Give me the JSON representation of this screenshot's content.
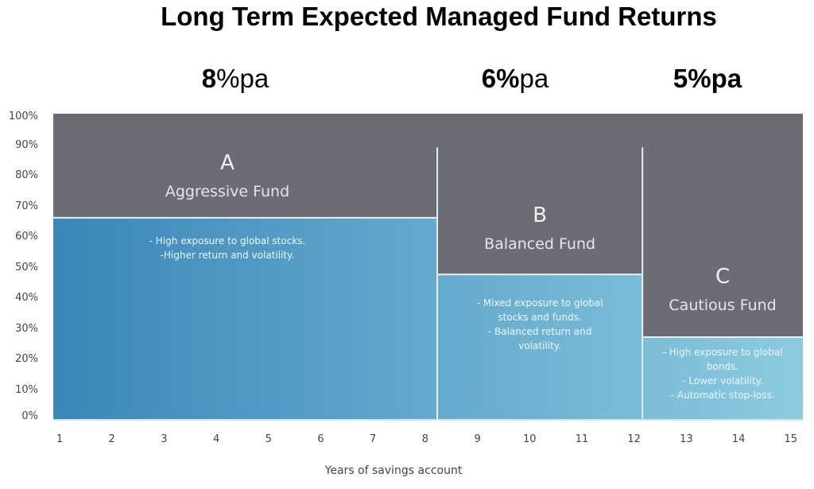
{
  "chart_data": {
    "type": "area",
    "title": "Long Term Expected Managed Fund Returns",
    "xlabel": "Years of savings account",
    "ylabel": "",
    "x_ticks": [
      "1",
      "2",
      "3",
      "4",
      "5",
      "6",
      "7",
      "8",
      "9",
      "10",
      "11",
      "12",
      "13",
      "14",
      "15"
    ],
    "y_ticks": [
      "100%",
      "90%",
      "80%",
      "70%",
      "60%",
      "50%",
      "40%",
      "30%",
      "20%",
      "10%",
      "0%"
    ],
    "xlim": [
      1,
      15
    ],
    "ylim": [
      0,
      100
    ],
    "grid": false,
    "legend": "none",
    "colors": {
      "upper_region": "#6b6c74",
      "lower_region_start": "#3a87b9",
      "lower_region_end": "#8ccbe0",
      "divider": "#e9eef3"
    },
    "series": [
      {
        "name": "Aggressive Fund",
        "letter": "A",
        "expected_return": "8%pa",
        "return_bold": "8",
        "return_regular": "%pa",
        "x_start": 1,
        "x_end": 8.3,
        "blue_level_pct": 66,
        "description": [
          "- High exposure to global stocks.",
          "-Higher return and volatility."
        ]
      },
      {
        "name": "Balanced Fund",
        "letter": "B",
        "expected_return": "6%pa",
        "return_bold": "6%",
        "return_regular": "pa",
        "x_start": 8.3,
        "x_end": 12.2,
        "blue_level_pct": 47.5,
        "description": [
          "- Mixed exposure to global",
          "stocks and funds.",
          "- Balanced return and",
          "volatility."
        ]
      },
      {
        "name": "Cautious Fund",
        "letter": "C",
        "expected_return": "5%pa",
        "return_bold": "5%pa",
        "return_regular": "",
        "x_start": 12.2,
        "x_end": 15.25,
        "blue_level_pct": 27,
        "description": [
          "- High exposure to global",
          "bonds.",
          "- Lower volatility.",
          "- Automatic stop-loss."
        ]
      }
    ],
    "dividers_top_pct": 89
  }
}
